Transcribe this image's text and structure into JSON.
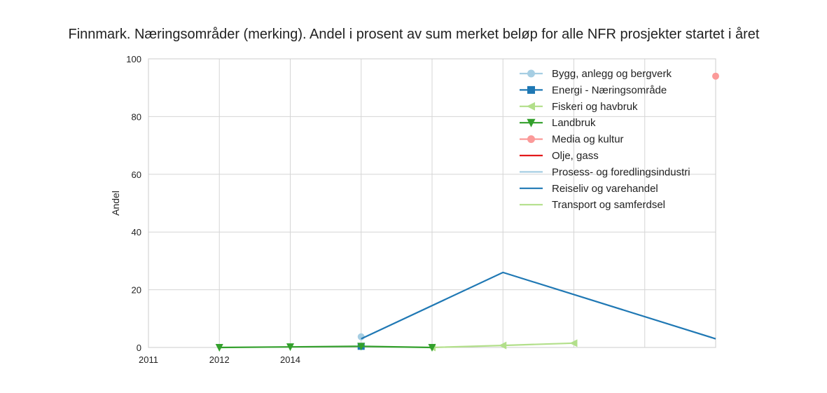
{
  "chart_data": {
    "type": "line",
    "title": "Finnmark. Næringsområder (merking). Andel i prosent av sum merket beløp for alle NFR prosjekter startet i året",
    "xlabel": "",
    "ylabel": "Andel",
    "ylim": [
      0,
      100
    ],
    "yticks": [
      "0",
      "20",
      "40",
      "60",
      "80",
      "100"
    ],
    "xticks": [
      "2011",
      "2012",
      "2014"
    ],
    "grid": true,
    "legend_position": "top-right",
    "series": [
      {
        "name": "Bygg, anlegg og bergverk",
        "color": "#a6cee3",
        "marker": "circle",
        "points": [
          [
            3,
            3.7
          ]
        ]
      },
      {
        "name": "Energi - Næringsområde",
        "color": "#1f78b4",
        "marker": "square",
        "points": [
          [
            3,
            0.4
          ]
        ]
      },
      {
        "name": "Fiskeri og havbruk",
        "color": "#b2df8a",
        "marker": "triangle-left",
        "points": [
          [
            4,
            0
          ],
          [
            5,
            0.7
          ],
          [
            6,
            1.5
          ]
        ]
      },
      {
        "name": "Landbruk",
        "color": "#33a02c",
        "marker": "triangle-down",
        "points": [
          [
            1,
            0
          ],
          [
            2,
            0.2
          ],
          [
            3,
            0.4
          ],
          [
            4,
            0
          ]
        ]
      },
      {
        "name": "Media og kultur",
        "color": "#fb9a99",
        "marker": "circle",
        "points": [
          [
            8,
            94
          ]
        ]
      },
      {
        "name": "Olje, gass",
        "color": "#e31a1c",
        "marker": "none",
        "points": []
      },
      {
        "name": "Prosess- og foredlingsindustri",
        "color": "#a6cee3",
        "marker": "none",
        "points": []
      },
      {
        "name": "Reiseliv og varehandel",
        "color": "#1f78b4",
        "marker": "none",
        "points": [
          [
            3,
            3
          ],
          [
            5,
            26
          ],
          [
            8,
            3
          ]
        ]
      },
      {
        "name": "Transport og samferdsel",
        "color": "#b2df8a",
        "marker": "none",
        "points": []
      }
    ]
  }
}
